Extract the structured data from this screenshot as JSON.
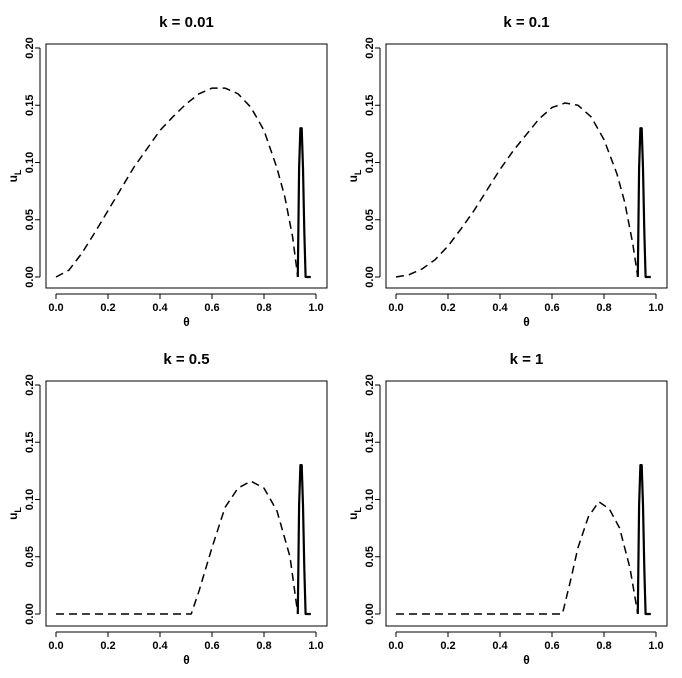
{
  "figure": {
    "panels": [
      {
        "title": "k = 0.01"
      },
      {
        "title": "k = 0.1"
      },
      {
        "title": "k = 0.5"
      },
      {
        "title": "k = 1"
      }
    ]
  },
  "chart_data": [
    {
      "type": "line",
      "title": "k = 0.01",
      "xlabel": "θ",
      "ylabel": "u",
      "ylabel_sub": "L",
      "xlim": [
        0,
        1
      ],
      "ylim": [
        0,
        0.2
      ],
      "x_ticks": [
        "0.0",
        "0.2",
        "0.4",
        "0.6",
        "0.8",
        "1.0"
      ],
      "y_ticks": [
        "0.00",
        "0.05",
        "0.10",
        "0.15",
        "0.20"
      ],
      "series": [
        {
          "style": "dashed",
          "x": [
            0.0,
            0.05,
            0.1,
            0.15,
            0.2,
            0.25,
            0.3,
            0.35,
            0.4,
            0.45,
            0.5,
            0.55,
            0.6,
            0.65,
            0.7,
            0.75,
            0.8,
            0.85,
            0.88,
            0.91,
            0.93
          ],
          "y": [
            0.0,
            0.006,
            0.021,
            0.039,
            0.058,
            0.077,
            0.096,
            0.112,
            0.128,
            0.14,
            0.151,
            0.16,
            0.165,
            0.165,
            0.16,
            0.148,
            0.128,
            0.095,
            0.07,
            0.035,
            0.0
          ]
        },
        {
          "style": "solid",
          "x": [
            0.93,
            0.935,
            0.94,
            0.945,
            0.95,
            0.955,
            0.96,
            0.97,
            0.98
          ],
          "y": [
            0.0,
            0.095,
            0.13,
            0.13,
            0.095,
            0.04,
            0.0,
            0.0,
            0.0
          ]
        }
      ]
    },
    {
      "type": "line",
      "title": "k = 0.1",
      "xlabel": "θ",
      "ylabel": "u",
      "ylabel_sub": "L",
      "xlim": [
        0,
        1
      ],
      "ylim": [
        0,
        0.2
      ],
      "x_ticks": [
        "0.0",
        "0.2",
        "0.4",
        "0.6",
        "0.8",
        "1.0"
      ],
      "y_ticks": [
        "0.00",
        "0.05",
        "0.10",
        "0.15",
        "0.20"
      ],
      "series": [
        {
          "style": "dashed",
          "x": [
            0.0,
            0.05,
            0.1,
            0.15,
            0.2,
            0.25,
            0.3,
            0.35,
            0.4,
            0.45,
            0.5,
            0.55,
            0.6,
            0.65,
            0.7,
            0.75,
            0.8,
            0.85,
            0.88,
            0.91,
            0.93
          ],
          "y": [
            0.0,
            0.002,
            0.007,
            0.015,
            0.027,
            0.042,
            0.058,
            0.076,
            0.094,
            0.11,
            0.124,
            0.138,
            0.148,
            0.152,
            0.15,
            0.14,
            0.12,
            0.09,
            0.065,
            0.03,
            0.0
          ]
        },
        {
          "style": "solid",
          "x": [
            0.93,
            0.935,
            0.94,
            0.945,
            0.95,
            0.955,
            0.96,
            0.97,
            0.98
          ],
          "y": [
            0.0,
            0.095,
            0.13,
            0.13,
            0.095,
            0.04,
            0.0,
            0.0,
            0.0
          ]
        }
      ]
    },
    {
      "type": "line",
      "title": "k = 0.5",
      "xlabel": "θ",
      "ylabel": "u",
      "ylabel_sub": "L",
      "xlim": [
        0,
        1
      ],
      "ylim": [
        0,
        0.2
      ],
      "x_ticks": [
        "0.0",
        "0.2",
        "0.4",
        "0.6",
        "0.8",
        "1.0"
      ],
      "y_ticks": [
        "0.00",
        "0.05",
        "0.10",
        "0.15",
        "0.20"
      ],
      "series": [
        {
          "style": "dashed",
          "x": [
            0.0,
            0.1,
            0.2,
            0.3,
            0.4,
            0.5,
            0.52,
            0.55,
            0.6,
            0.65,
            0.7,
            0.75,
            0.8,
            0.85,
            0.9,
            0.93
          ],
          "y": [
            0.0,
            0.0,
            0.0,
            0.0,
            0.0,
            0.0,
            0.0,
            0.02,
            0.058,
            0.093,
            0.11,
            0.116,
            0.11,
            0.09,
            0.05,
            0.0
          ]
        },
        {
          "style": "solid",
          "x": [
            0.93,
            0.935,
            0.94,
            0.945,
            0.95,
            0.955,
            0.96,
            0.97,
            0.98
          ],
          "y": [
            0.0,
            0.095,
            0.13,
            0.13,
            0.095,
            0.04,
            0.0,
            0.0,
            0.0
          ]
        }
      ]
    },
    {
      "type": "line",
      "title": "k = 1",
      "xlabel": "θ",
      "ylabel": "u",
      "ylabel_sub": "L",
      "xlim": [
        0,
        1
      ],
      "ylim": [
        0,
        0.2
      ],
      "x_ticks": [
        "0.0",
        "0.2",
        "0.4",
        "0.6",
        "0.8",
        "1.0"
      ],
      "y_ticks": [
        "0.00",
        "0.05",
        "0.10",
        "0.15",
        "0.20"
      ],
      "series": [
        {
          "style": "dashed",
          "x": [
            0.0,
            0.1,
            0.2,
            0.3,
            0.4,
            0.5,
            0.6,
            0.64,
            0.67,
            0.7,
            0.74,
            0.78,
            0.82,
            0.86,
            0.9,
            0.93
          ],
          "y": [
            0.0,
            0.0,
            0.0,
            0.0,
            0.0,
            0.0,
            0.0,
            0.0,
            0.028,
            0.058,
            0.085,
            0.098,
            0.092,
            0.075,
            0.04,
            0.0
          ]
        },
        {
          "style": "solid",
          "x": [
            0.93,
            0.935,
            0.94,
            0.945,
            0.95,
            0.955,
            0.96,
            0.97,
            0.98
          ],
          "y": [
            0.0,
            0.095,
            0.13,
            0.13,
            0.095,
            0.04,
            0.0,
            0.0,
            0.0
          ]
        }
      ]
    }
  ]
}
